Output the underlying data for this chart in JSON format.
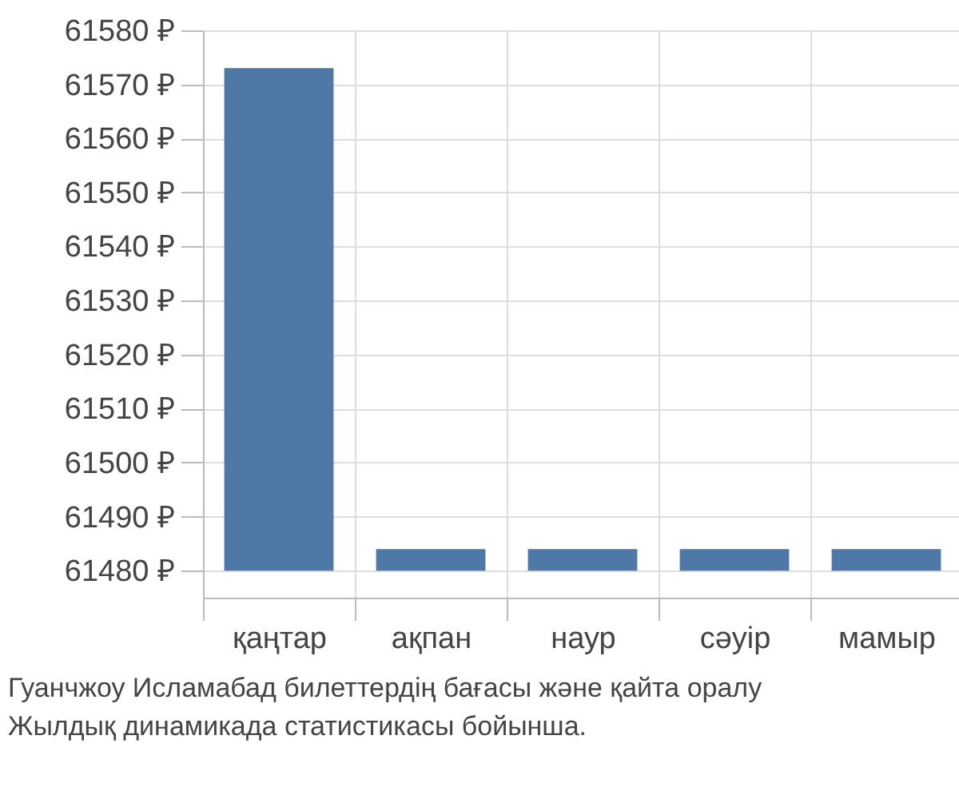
{
  "chart_data": {
    "type": "bar",
    "categories": [
      "қаңтар",
      "ақпан",
      "наур",
      "сәуір",
      "мамыр"
    ],
    "values": [
      93,
      4,
      4,
      4,
      4
    ],
    "base": [
      61480,
      61480,
      61480,
      61480,
      61480
    ],
    "color": "#4e79a7",
    "ylim": [
      61475,
      61580
    ],
    "yticks": [
      {
        "value": 61480,
        "label": "61480 ₽"
      },
      {
        "value": 61490,
        "label": "61490 ₽"
      },
      {
        "value": 61500,
        "label": "61500 ₽"
      },
      {
        "value": 61510,
        "label": "61510 ₽"
      },
      {
        "value": 61520,
        "label": "61520 ₽"
      },
      {
        "value": 61530,
        "label": "61530 ₽"
      },
      {
        "value": 61540,
        "label": "61540 ₽"
      },
      {
        "value": 61550,
        "label": "61550 ₽"
      },
      {
        "value": 61560,
        "label": "61560 ₽"
      },
      {
        "value": 61570,
        "label": "61570 ₽"
      },
      {
        "value": 61580,
        "label": "61580 ₽"
      }
    ],
    "grid": true,
    "annotations": [
      "Гуанчжоу Исламабад билеттердің бағасы және қайта оралу",
      "Жылдық динамикада статистикасы бойынша."
    ]
  }
}
